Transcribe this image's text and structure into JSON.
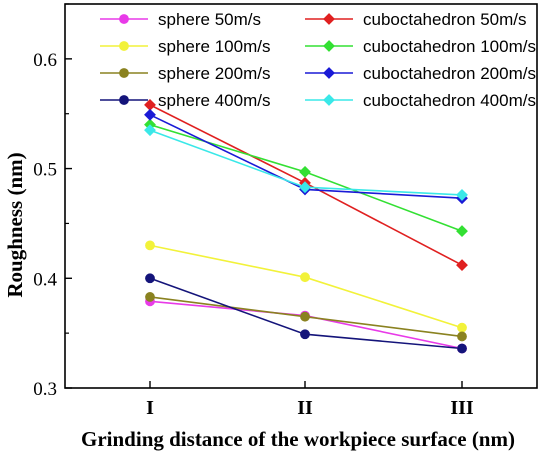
{
  "chart_data": {
    "type": "line",
    "title": "",
    "xlabel": "Grinding distance of the workpiece surface (nm)",
    "ylabel": "Roughness (nm)",
    "categories": [
      "I",
      "II",
      "III"
    ],
    "ylim": [
      0.3,
      0.65
    ],
    "yticks": [
      0.3,
      0.4,
      0.5,
      0.6
    ],
    "ytick_labels": [
      "0.3",
      "0.4",
      "0.5",
      "0.6"
    ],
    "grid": false,
    "legend_position": "top",
    "series": [
      {
        "name": "sphere 50m/s",
        "color": "#e83ae8",
        "marker": "circle",
        "values": [
          0.379,
          0.366,
          0.336
        ]
      },
      {
        "name": "sphere 100m/s",
        "color": "#f2f23a",
        "marker": "circle",
        "values": [
          0.43,
          0.401,
          0.355
        ]
      },
      {
        "name": "sphere 200m/s",
        "color": "#8a8220",
        "marker": "circle",
        "values": [
          0.383,
          0.365,
          0.347
        ]
      },
      {
        "name": "sphere 400m/s",
        "color": "#14147a",
        "marker": "circle",
        "values": [
          0.4,
          0.349,
          0.336
        ]
      },
      {
        "name": "cuboctahedron 50m/s",
        "color": "#e02020",
        "marker": "diamond",
        "values": [
          0.558,
          0.487,
          0.412
        ]
      },
      {
        "name": "cuboctahedron 100m/s",
        "color": "#33e033",
        "marker": "diamond",
        "values": [
          0.54,
          0.497,
          0.443
        ]
      },
      {
        "name": "cuboctahedron 200m/s",
        "color": "#1a1ad6",
        "marker": "diamond",
        "values": [
          0.549,
          0.481,
          0.473
        ]
      },
      {
        "name": "cuboctahedron 400m/s",
        "color": "#3ae8e8",
        "marker": "diamond",
        "values": [
          0.535,
          0.483,
          0.476
        ]
      }
    ]
  }
}
